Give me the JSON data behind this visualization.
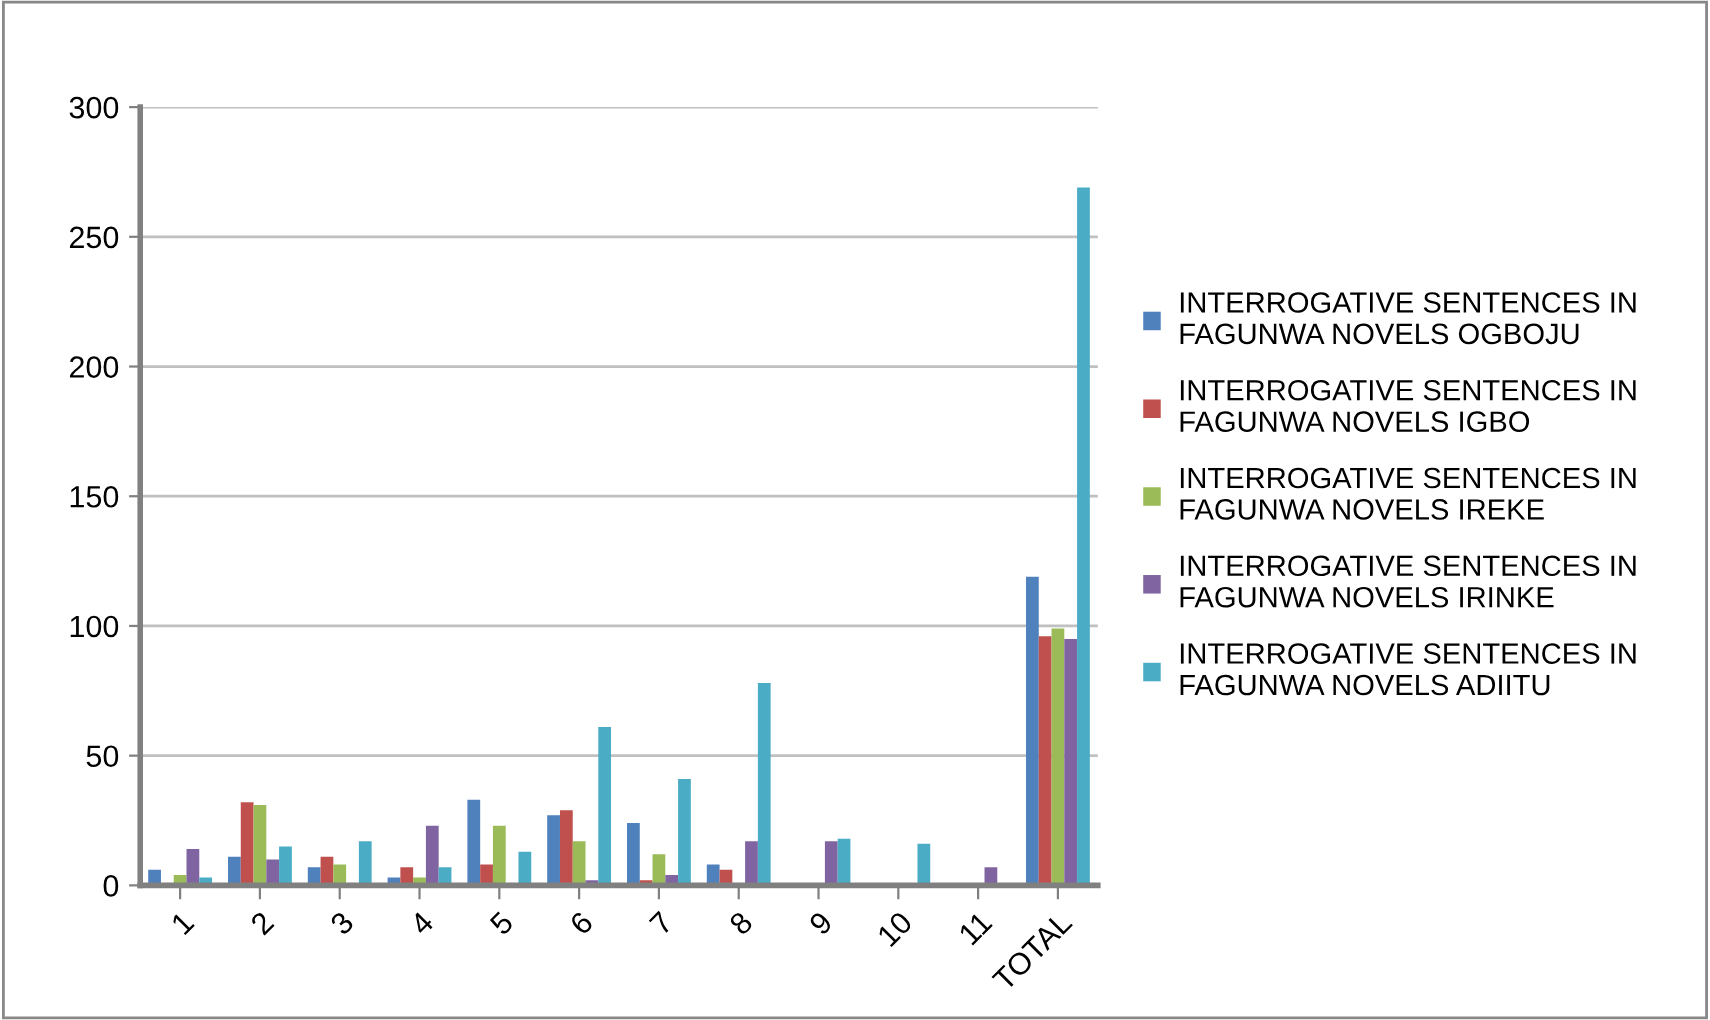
{
  "chart_data": {
    "type": "bar",
    "categories": [
      "1",
      "2",
      "3",
      "4",
      "5",
      "6",
      "7",
      "8",
      "9",
      "10",
      "11",
      "TOTAL"
    ],
    "series": [
      {
        "name": "INTERROGATIVE SENTENCES IN FAGUNWA NOVELS OGBOJU",
        "color": "#4f81bd",
        "values": [
          6,
          11,
          7,
          3,
          33,
          27,
          24,
          8,
          0,
          0,
          0,
          119
        ]
      },
      {
        "name": "INTERROGATIVE SENTENCES IN FAGUNWA NOVELS IGBO",
        "color": "#c0504d",
        "values": [
          0,
          32,
          11,
          7,
          8,
          29,
          2,
          6,
          0,
          0,
          0,
          96
        ]
      },
      {
        "name": "INTERROGATIVE SENTENCES IN FAGUNWA NOVELS IREKE",
        "color": "#9bbb59",
        "values": [
          4,
          31,
          8,
          3,
          23,
          17,
          12,
          0,
          0,
          0,
          0,
          99
        ]
      },
      {
        "name": "INTERROGATIVE SENTENCES IN FAGUNWA NOVELS IRINKE",
        "color": "#8064a2",
        "values": [
          14,
          10,
          0,
          23,
          0,
          2,
          4,
          17,
          17,
          0,
          7,
          95
        ]
      },
      {
        "name": "INTERROGATIVE SENTENCES IN FAGUNWA NOVELS ADIITU",
        "color": "#4bacc6",
        "values": [
          3,
          15,
          17,
          7,
          13,
          61,
          41,
          78,
          18,
          16,
          0,
          269
        ]
      }
    ],
    "ylim": [
      0,
      300
    ],
    "yticks": [
      0,
      50,
      100,
      150,
      200,
      250,
      300
    ],
    "grid": "y",
    "legend": "right"
  }
}
